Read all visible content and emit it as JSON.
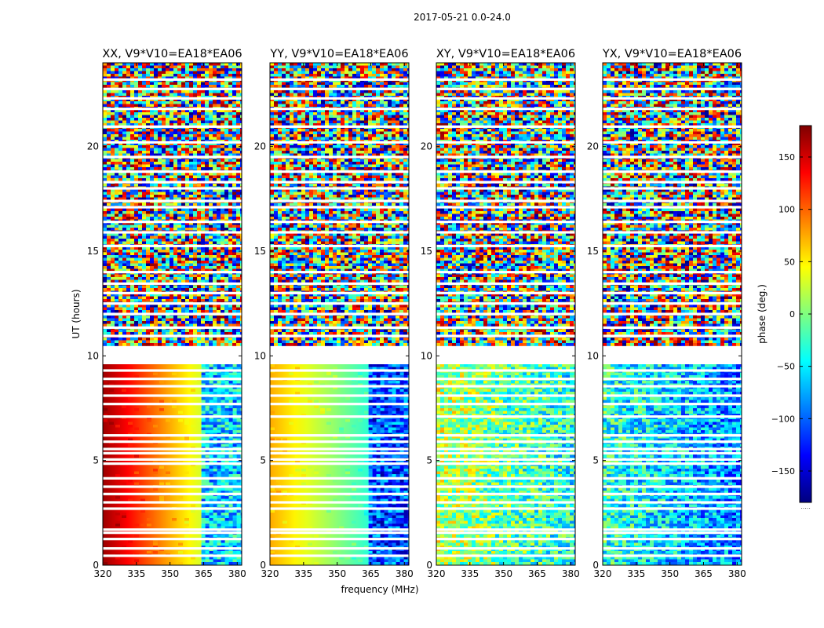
{
  "figure": {
    "suptitle": "2017-05-21 0.0-24.0",
    "xlabel": "frequency (MHz)",
    "ylabel": "UT (hours)"
  },
  "colorbar": {
    "label": "phase (deg.)",
    "range": [
      -180,
      180
    ],
    "ticks": [
      150,
      100,
      50,
      0,
      -50,
      -100,
      -150
    ],
    "tick_labels": [
      "150",
      "100",
      "50",
      "0",
      "−50",
      "−100",
      "−150"
    ],
    "colors": [
      "#00007f",
      "#0000ff",
      "#007fff",
      "#00ffff",
      "#7fff7f",
      "#ffff00",
      "#ff7f00",
      "#ff0000",
      "#7f0000"
    ],
    "colormap": "jet",
    "footer_mark": "....."
  },
  "chart_data": [
    {
      "type": "heatmap",
      "title": "XX, V9*V10=EA18*EA06",
      "x_range": [
        320,
        382
      ],
      "y_range": [
        0,
        24
      ],
      "xticks": [
        320,
        335,
        350,
        365,
        380
      ],
      "yticks": [
        0,
        5,
        10,
        15,
        20
      ],
      "value": "phase (deg.)",
      "segments": [
        {
          "ut": [
            0,
            9.6
          ],
          "f": [
            320,
            364
          ],
          "phase": [
            170,
            30
          ],
          "pattern": "smooth"
        },
        {
          "ut": [
            0,
            9.6
          ],
          "f": [
            364,
            382
          ],
          "phase": [
            -60,
            -60
          ],
          "pattern": "noisy"
        },
        {
          "ut": [
            9.6,
            10.6
          ],
          "pattern": "blank"
        },
        {
          "ut": [
            10.6,
            24
          ],
          "pattern": "random"
        }
      ]
    },
    {
      "type": "heatmap",
      "title": "YY, V9*V10=EA18*EA06",
      "x_range": [
        320,
        382
      ],
      "y_range": [
        0,
        24
      ],
      "xticks": [
        320,
        335,
        350,
        365,
        380
      ],
      "yticks": [
        0,
        5,
        10,
        15,
        20
      ],
      "value": "phase (deg.)",
      "segments": [
        {
          "ut": [
            0,
            9.6
          ],
          "f": [
            320,
            364
          ],
          "phase": [
            75,
            -30
          ],
          "pattern": "smooth"
        },
        {
          "ut": [
            0,
            9.6
          ],
          "f": [
            364,
            382
          ],
          "phase": [
            -110,
            -110
          ],
          "pattern": "noisy"
        },
        {
          "ut": [
            9.6,
            10.6
          ],
          "pattern": "blank"
        },
        {
          "ut": [
            10.6,
            24
          ],
          "pattern": "random"
        }
      ]
    },
    {
      "type": "heatmap",
      "title": "XY, V9*V10=EA18*EA06",
      "x_range": [
        320,
        382
      ],
      "y_range": [
        0,
        24
      ],
      "xticks": [
        320,
        335,
        350,
        365,
        380
      ],
      "yticks": [
        0,
        5,
        10,
        15,
        20
      ],
      "value": "phase (deg.)",
      "segments": [
        {
          "ut": [
            0,
            9.6
          ],
          "f": [
            320,
            382
          ],
          "phase": [
            20,
            -40
          ],
          "pattern": "noisy"
        },
        {
          "ut": [
            9.6,
            10.6
          ],
          "pattern": "blank"
        },
        {
          "ut": [
            10.6,
            24
          ],
          "pattern": "random"
        }
      ]
    },
    {
      "type": "heatmap",
      "title": "YX, V9*V10=EA18*EA06",
      "x_range": [
        320,
        382
      ],
      "y_range": [
        0,
        24
      ],
      "xticks": [
        320,
        335,
        350,
        365,
        380
      ],
      "yticks": [
        0,
        5,
        10,
        15,
        20
      ],
      "value": "phase (deg.)",
      "segments": [
        {
          "ut": [
            0,
            9.6
          ],
          "f": [
            320,
            382
          ],
          "phase": [
            -30,
            -90
          ],
          "pattern": "noisy"
        },
        {
          "ut": [
            9.6,
            10.6
          ],
          "pattern": "blank"
        },
        {
          "ut": [
            10.6,
            24
          ],
          "pattern": "random"
        }
      ]
    }
  ]
}
